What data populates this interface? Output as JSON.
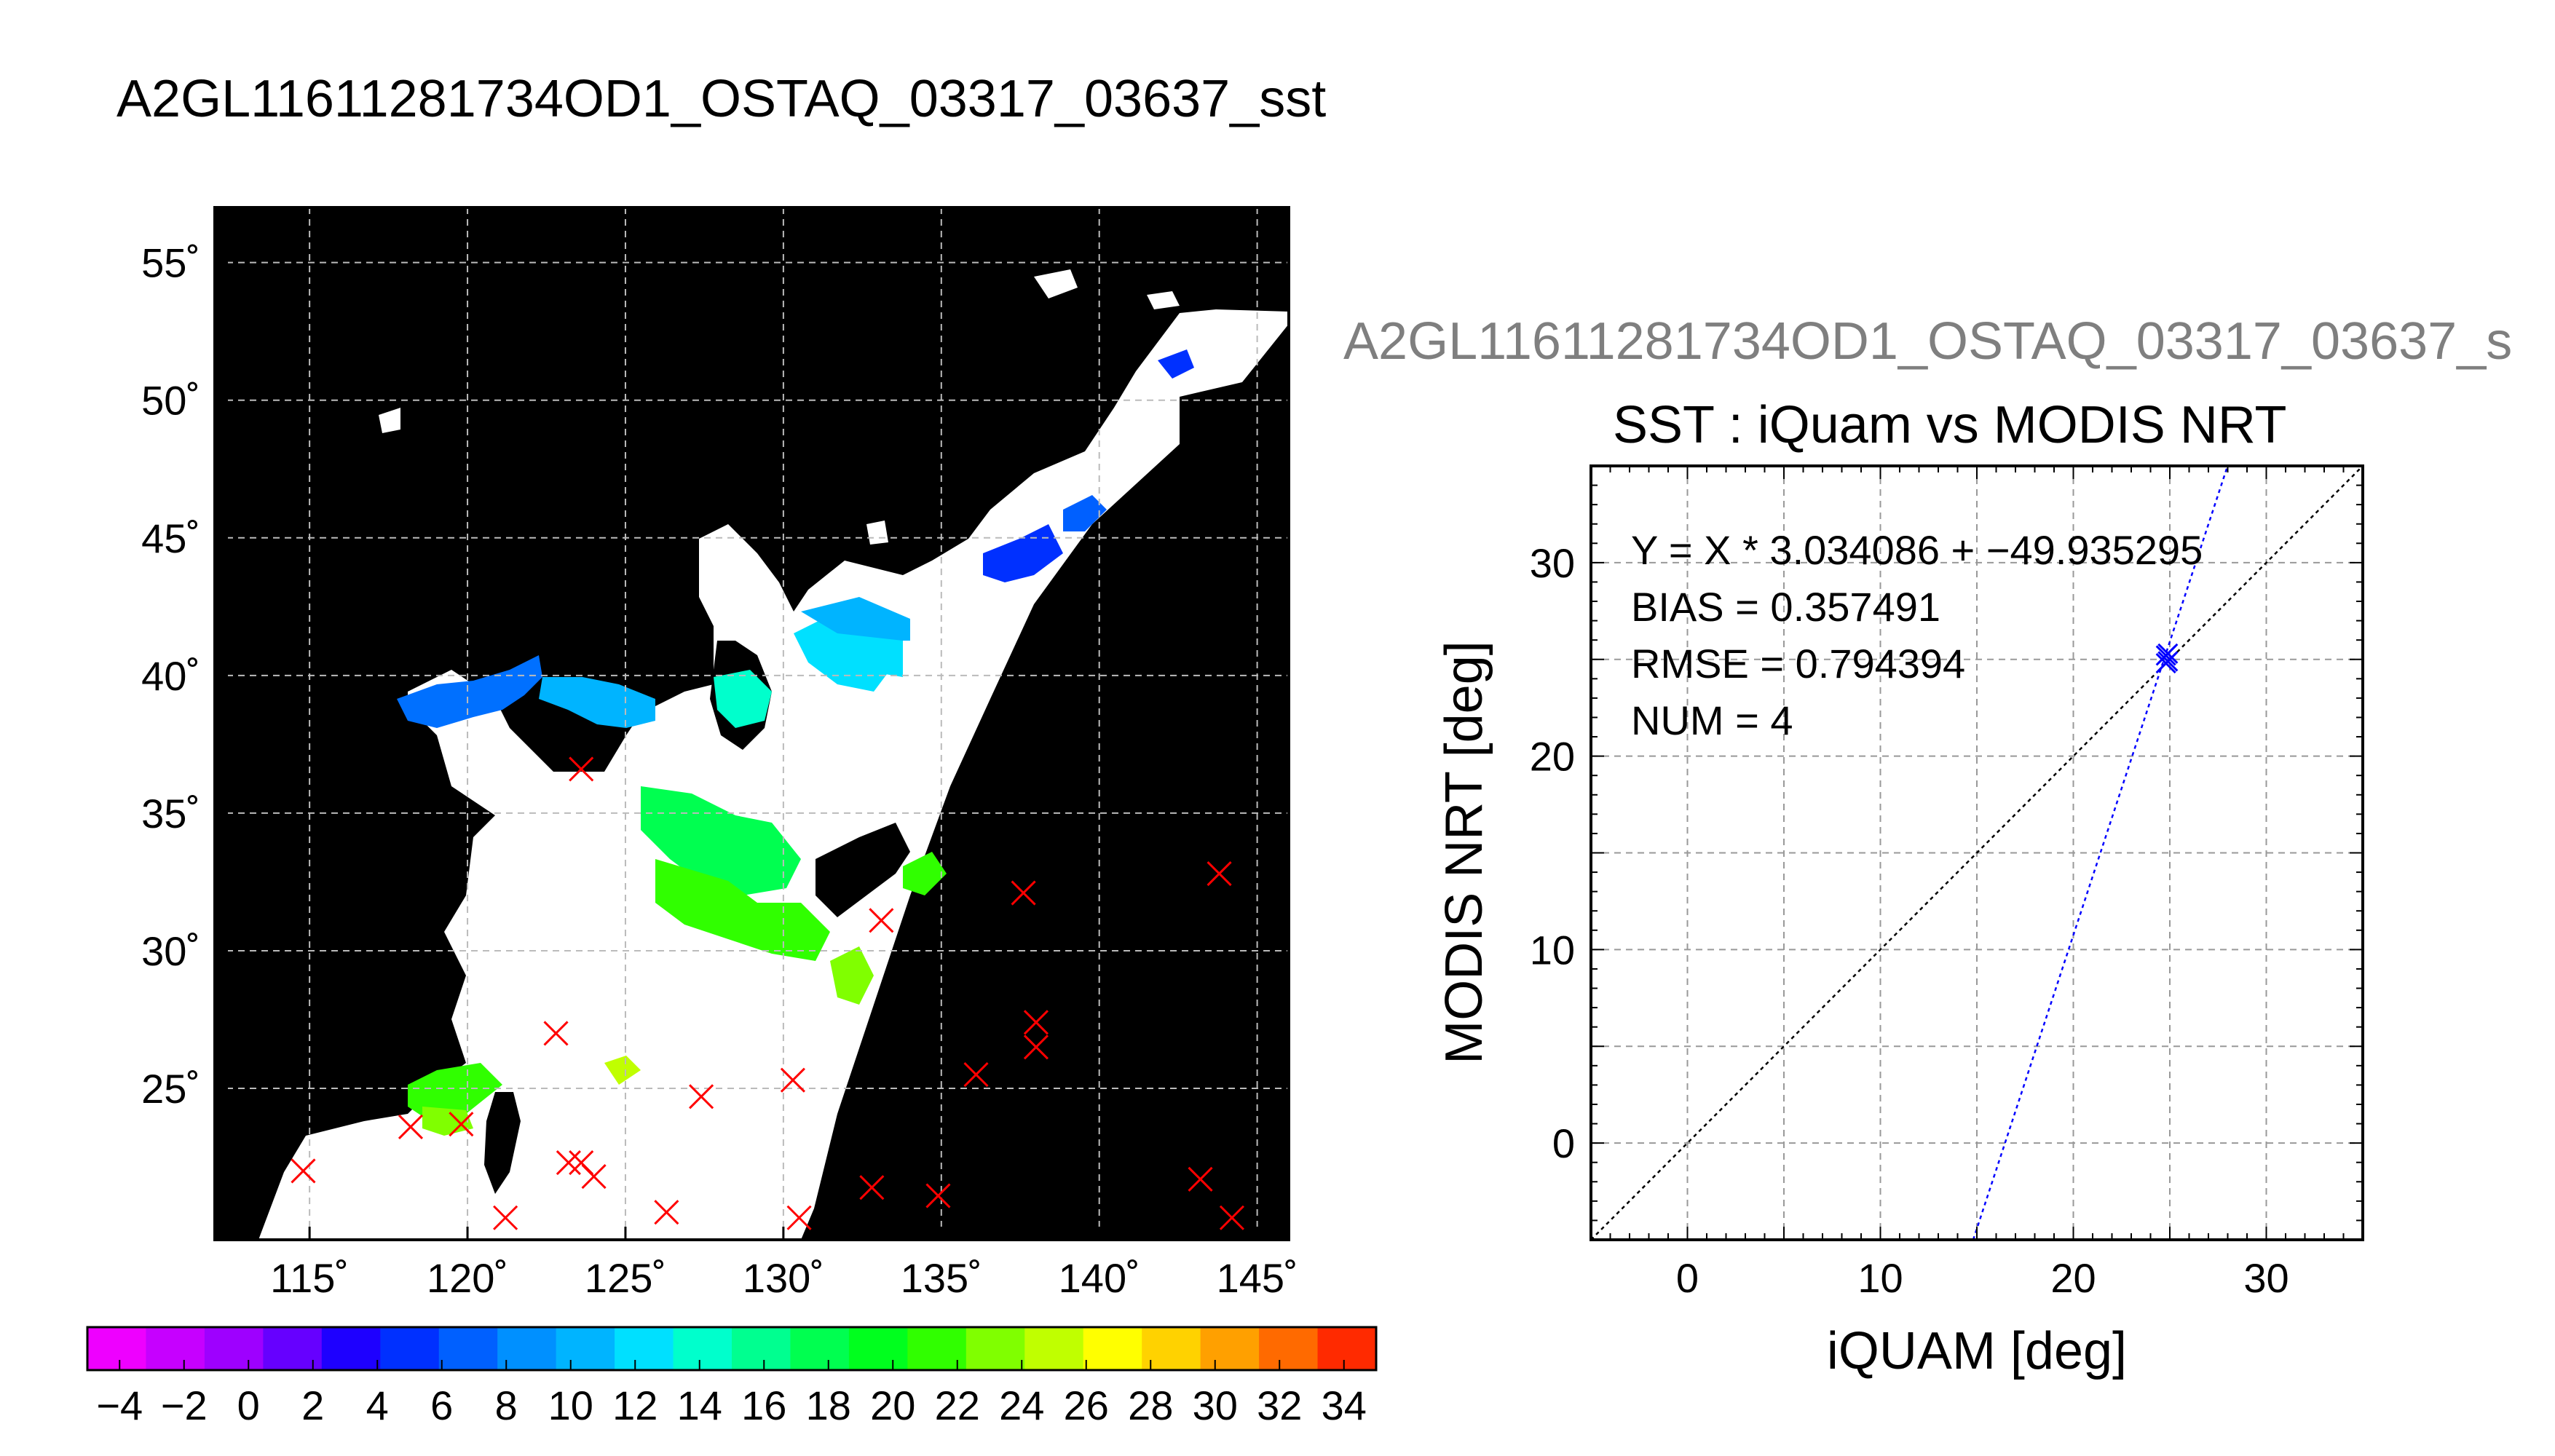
{
  "title": "A2GL11611281734OD1_OSTAQ_03317_03637_sst",
  "colors": {
    "marker_red": "#ff0000",
    "fit_line": "#0000ff",
    "identity_line": "#000000",
    "ocean_mask": "#000000",
    "land_mask": "#ffffff"
  },
  "chart_data": [
    {
      "type": "heatmap",
      "panel": "map",
      "xlim": [
        112,
        146
      ],
      "ylim": [
        19.5,
        57
      ],
      "grid": true,
      "x_ticks": [
        115,
        120,
        125,
        130,
        135,
        140,
        145
      ],
      "x_tick_labels": [
        "115˚",
        "120˚",
        "125˚",
        "130˚",
        "135˚",
        "140˚",
        "145˚"
      ],
      "y_ticks": [
        25,
        30,
        35,
        40,
        45,
        50,
        55
      ],
      "y_tick_labels": [
        "25˚",
        "30˚",
        "35˚",
        "40˚",
        "45˚",
        "50˚",
        "55˚"
      ],
      "insitu_markers_lonlat": [
        [
          114.8,
          22.0
        ],
        [
          118.2,
          23.6
        ],
        [
          119.8,
          23.7
        ],
        [
          121.2,
          20.3
        ],
        [
          122.8,
          27.0
        ],
        [
          123.2,
          22.3
        ],
        [
          123.6,
          22.3
        ],
        [
          124.0,
          21.8
        ],
        [
          123.6,
          36.6
        ],
        [
          126.3,
          20.5
        ],
        [
          127.4,
          24.7
        ],
        [
          130.3,
          25.3
        ],
        [
          130.5,
          20.3
        ],
        [
          132.8,
          21.4
        ],
        [
          133.1,
          31.1
        ],
        [
          134.9,
          21.1
        ],
        [
          136.1,
          25.5
        ],
        [
          137.6,
          32.1
        ],
        [
          138.0,
          27.4
        ],
        [
          138.0,
          26.5
        ],
        [
          143.2,
          21.7
        ],
        [
          143.8,
          32.8
        ],
        [
          144.2,
          20.3
        ]
      ],
      "colorbar": {
        "min": -5,
        "max": 35,
        "tick_labels": [
          "−4",
          "−2",
          "0",
          "2",
          "4",
          "6",
          "8",
          "10",
          "12",
          "14",
          "16",
          "18",
          "20",
          "22",
          "24",
          "26",
          "28",
          "30",
          "32",
          "34"
        ],
        "colors": [
          "#ee00ff",
          "#c600ff",
          "#9e00ff",
          "#6600ff",
          "#1e00ff",
          "#0030ff",
          "#0060ff",
          "#0090ff",
          "#00b4ff",
          "#00e0ff",
          "#00ffcc",
          "#00ff90",
          "#00ff50",
          "#00ff1e",
          "#30ff00",
          "#80ff00",
          "#c0ff00",
          "#ffff00",
          "#ffd200",
          "#ffa000",
          "#ff6a00",
          "#ff2a00"
        ]
      }
    },
    {
      "type": "scatter",
      "panel": "scatter",
      "subtitle_gray": "A2GL11611281734OD1_OSTAQ_03317_03637_s",
      "title": "SST : iQuam vs MODIS NRT",
      "xlabel": "iQUAM [deg]",
      "ylabel": "MODIS NRT [deg]",
      "xlim": [
        -5,
        35
      ],
      "ylim": [
        -5,
        35
      ],
      "x_tick_values": [
        0,
        10,
        20,
        30
      ],
      "x_tick_labels": [
        "0",
        "10",
        "20",
        "30"
      ],
      "y_tick_values": [
        0,
        10,
        20,
        30
      ],
      "y_tick_labels": [
        "0",
        "10",
        "20",
        "30"
      ],
      "grid": true,
      "points": [
        [
          24.8,
          25.2
        ],
        [
          24.8,
          24.8
        ],
        [
          24.9,
          25.3
        ],
        [
          24.9,
          24.9
        ]
      ],
      "fit": {
        "slope": 3.034086,
        "intercept": -49.935295
      },
      "stats": {
        "equation": "Y = X * 3.034086 + −49.935295",
        "bias": "BIAS = 0.357491",
        "rmse": "RMSE = 0.794394",
        "num": "NUM = 4"
      }
    }
  ]
}
